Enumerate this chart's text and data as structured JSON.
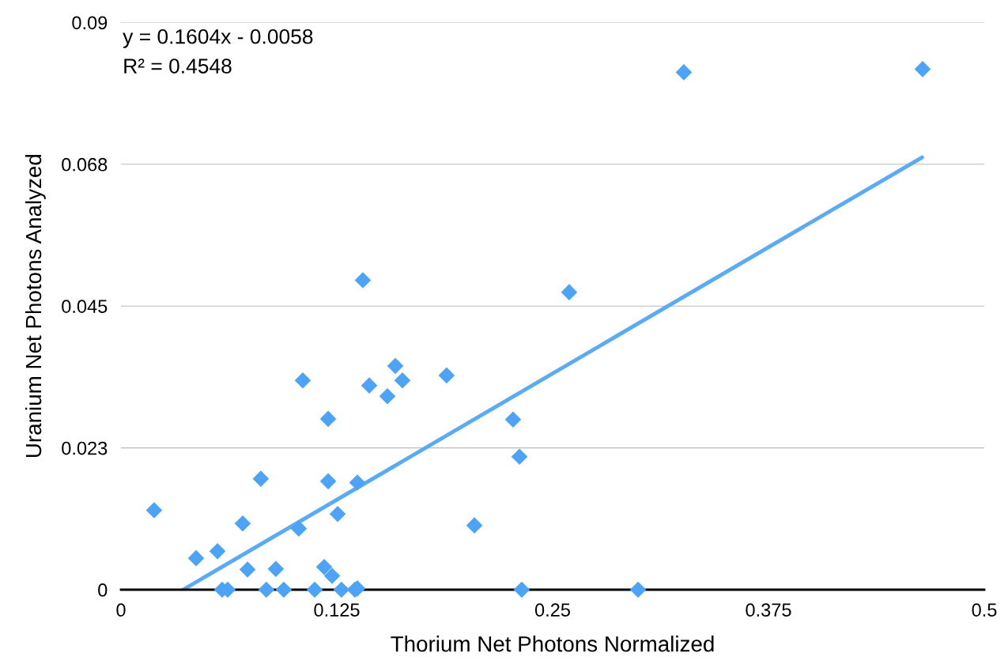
{
  "chart_data": {
    "type": "scatter",
    "xlabel": "Thorium Net Photons Normalized",
    "ylabel": "Uranium Net Photons Analyzed",
    "annotations": [
      "y = 0.1604x - 0.0058",
      "R² = 0.4548"
    ],
    "xlim": [
      0,
      0.5
    ],
    "xticks": [
      0,
      0.125,
      0.25,
      0.375,
      0.5
    ],
    "ylim": [
      0,
      0.09
    ],
    "yticks": [
      0,
      {
        "value": 0.0225,
        "label": "0.023"
      },
      0.045,
      {
        "value": 0.0675,
        "label": "0.068"
      },
      0.09
    ],
    "grid": "y",
    "marker": "diamond",
    "legend": false,
    "series": [
      {
        "color": "#4da3f5",
        "x": [
          0.0192,
          0.0435,
          0.0559,
          0.0586,
          0.0618,
          0.0705,
          0.0733,
          0.081,
          0.0842,
          0.0897,
          0.0943,
          0.103,
          0.1053,
          0.1122,
          0.1177,
          0.12,
          0.12,
          0.1223,
          0.1255,
          0.1277,
          0.1355,
          0.1369,
          0.1369,
          0.1401,
          0.1438,
          0.1543,
          0.1589,
          0.163,
          0.1886,
          0.2047,
          0.2271,
          0.2308,
          0.2321,
          0.2596,
          0.2995,
          0.326,
          0.4643
        ],
        "values": [
          0.0126,
          0.005,
          0.0061,
          0,
          0,
          0.0105,
          0.0032,
          0.0176,
          0,
          0.0033,
          0,
          0.0097,
          0.0332,
          0,
          0.0036,
          0.0271,
          0.0172,
          0.0022,
          0.012,
          0,
          0,
          0.0002,
          0.017,
          0.0491,
          0.0324,
          0.0307,
          0.0355,
          0.0332,
          0.034,
          0.0102,
          0.027,
          0.0211,
          0,
          0.0472,
          0,
          0.0821,
          0.0826
        ]
      },
      {
        "type": "line",
        "marker": "none",
        "color": "#5aabf5",
        "x": [
          0.036,
          0.464
        ],
        "values": [
          0.0,
          0.0686
        ]
      }
    ]
  }
}
